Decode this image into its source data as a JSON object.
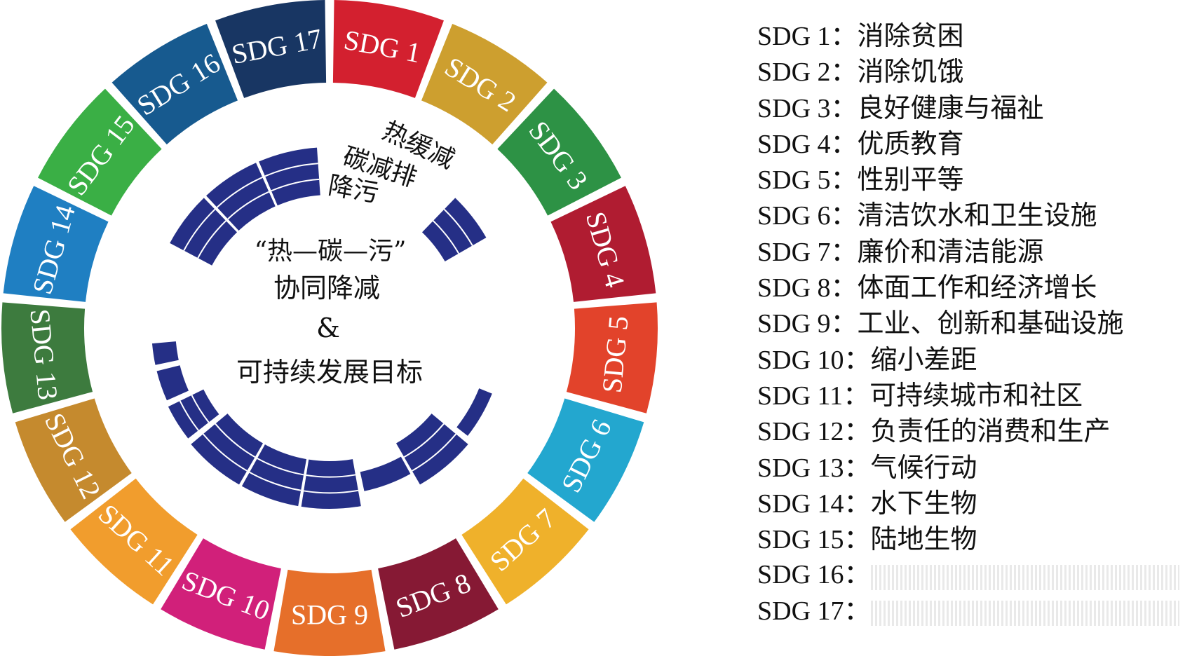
{
  "sdgs": [
    {
      "label": "SDG 1",
      "color": "#d3202f"
    },
    {
      "label": "SDG 2",
      "color": "#cd9f2f"
    },
    {
      "label": "SDG 3",
      "color": "#2d9245"
    },
    {
      "label": "SDG 4",
      "color": "#b01c31"
    },
    {
      "label": "SDG 5",
      "color": "#e2432b"
    },
    {
      "label": "SDG 6",
      "color": "#23a7cf"
    },
    {
      "label": "SDG 7",
      "color": "#efb12b"
    },
    {
      "label": "SDG 8",
      "color": "#861934"
    },
    {
      "label": "SDG 9",
      "color": "#e66f2a"
    },
    {
      "label": "SDG 10",
      "color": "#d1207a"
    },
    {
      "label": "SDG 11",
      "color": "#f19d2d"
    },
    {
      "label": "SDG 12",
      "color": "#c58a2e"
    },
    {
      "label": "SDG 13",
      "color": "#3d7b3e"
    },
    {
      "label": "SDG 14",
      "color": "#1f7fc2"
    },
    {
      "label": "SDG 15",
      "color": "#3aaf45"
    },
    {
      "label": "SDG 16",
      "color": "#175a8f"
    },
    {
      "label": "SDG 17",
      "color": "#183663"
    }
  ],
  "center": {
    "corner_text_lines": [
      "热缓减",
      "碳减排",
      "降污"
    ],
    "quote_line": "“热—碳—污”",
    "line2": "协同降减",
    "line3": "&",
    "line4": "可持续发展目标"
  },
  "bar_color": "#252f86",
  "legend": [
    {
      "code": "SDG 1：",
      "text": "消除贫困"
    },
    {
      "code": "SDG 2：",
      "text": "消除饥饿"
    },
    {
      "code": "SDG 3：",
      "text": "良好健康与福祉"
    },
    {
      "code": "SDG 4：",
      "text": "优质教育"
    },
    {
      "code": "SDG 5：",
      "text": "性别平等"
    },
    {
      "code": "SDG 6：",
      "text": "清洁饮水和卫生设施"
    },
    {
      "code": "SDG 7：",
      "text": "廉价和清洁能源"
    },
    {
      "code": "SDG 8：",
      "text": "体面工作和经济增长"
    },
    {
      "code": "SDG 9：",
      "text": "工业、创新和基础设施"
    },
    {
      "code": "SDG 10：",
      "text": "缩小差距"
    },
    {
      "code": "SDG 11：",
      "text": "可持续城市和社区"
    },
    {
      "code": "SDG 12：",
      "text": "负责任的消费和生产"
    },
    {
      "code": "SDG 13：",
      "text": "气候行动"
    },
    {
      "code": "SDG 14：",
      "text": "水下生物"
    },
    {
      "code": "SDG 15：",
      "text": "陆地生物"
    },
    {
      "code": "SDG 16：",
      "text": ""
    },
    {
      "code": "SDG 17：",
      "text": ""
    }
  ]
}
